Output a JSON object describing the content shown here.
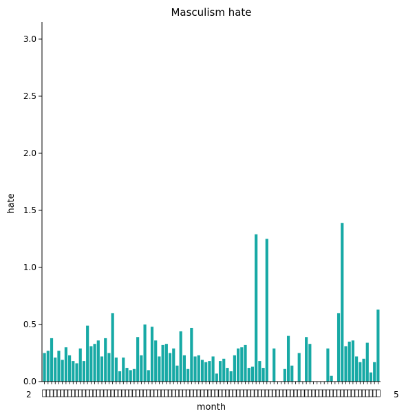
{
  "chart_data": {
    "type": "bar",
    "title": "Masculism hate",
    "xlabel": "month",
    "ylabel": "hate",
    "ylim": [
      0,
      3.15
    ],
    "yticks": [
      "0.0",
      "0.5",
      "1.0",
      "1.5",
      "2.0",
      "2.5",
      "3.0"
    ],
    "ytick_values": [
      0,
      0.5,
      1.0,
      1.5,
      2.0,
      2.5,
      3.0
    ],
    "grid": false,
    "legend": "none",
    "bar_color": "#17a9a5",
    "x_tick_text_start": "2",
    "x_tick_text_end": "5",
    "values": [
      0.25,
      0.27,
      0.38,
      0.21,
      0.27,
      0.19,
      0.3,
      0.23,
      0.18,
      0.16,
      0.29,
      0.18,
      0.49,
      0.31,
      0.33,
      0.36,
      0.22,
      0.38,
      0.25,
      0.6,
      0.21,
      0.09,
      0.21,
      0.12,
      0.1,
      0.11,
      0.39,
      0.23,
      0.5,
      0.1,
      0.48,
      0.36,
      0.22,
      0.32,
      0.33,
      0.25,
      0.29,
      0.14,
      0.44,
      0.23,
      0.11,
      0.47,
      0.22,
      0.23,
      0.19,
      0.17,
      0.18,
      0.22,
      0.07,
      0.18,
      0.2,
      0.12,
      0.09,
      0.23,
      0.29,
      0.3,
      0.32,
      0.12,
      0.13,
      1.29,
      0.18,
      0.12,
      1.25,
      0,
      0.29,
      0,
      0,
      0.11,
      0.4,
      0.14,
      0,
      0.25,
      0,
      0.39,
      0.33,
      0,
      0,
      0,
      0,
      0.29,
      0.05,
      0,
      0.6,
      1.39,
      0.31,
      0.35,
      0.36,
      0.22,
      0.17,
      0.2,
      0.34,
      0.08,
      0.17,
      0.63
    ]
  }
}
